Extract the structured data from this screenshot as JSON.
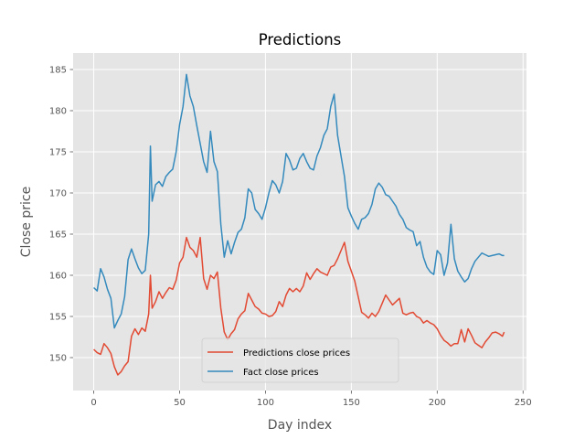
{
  "chart_data": {
    "type": "line",
    "title": "Predictions",
    "xlabel": "Day index",
    "ylabel": "Close price",
    "xlim": [
      -12,
      252
    ],
    "ylim": [
      146,
      187
    ],
    "xticks": [
      0,
      50,
      100,
      150,
      200,
      250
    ],
    "yticks": [
      150,
      155,
      160,
      165,
      170,
      175,
      180,
      185
    ],
    "grid": true,
    "legend_position": "lower-center",
    "series": [
      {
        "name": "Predictions close prices",
        "color": "#E24A33",
        "x": [
          0,
          2,
          4,
          6,
          8,
          10,
          12,
          14,
          16,
          18,
          20,
          22,
          24,
          26,
          28,
          30,
          32,
          33,
          34,
          36,
          38,
          40,
          42,
          44,
          46,
          48,
          50,
          52,
          54,
          56,
          58,
          60,
          62,
          64,
          66,
          68,
          70,
          72,
          74,
          76,
          78,
          80,
          82,
          84,
          86,
          88,
          90,
          92,
          94,
          96,
          98,
          100,
          102,
          104,
          106,
          108,
          110,
          112,
          114,
          116,
          118,
          120,
          122,
          124,
          126,
          128,
          130,
          132,
          134,
          136,
          138,
          140,
          142,
          144,
          146,
          148,
          150,
          152,
          154,
          156,
          158,
          160,
          162,
          164,
          166,
          168,
          170,
          172,
          174,
          176,
          178,
          180,
          182,
          184,
          186,
          188,
          190,
          192,
          194,
          196,
          198,
          200,
          202,
          204,
          206,
          208,
          210,
          212,
          214,
          216,
          218,
          220,
          222,
          224,
          226,
          228,
          230,
          232,
          234,
          236,
          238,
          239
        ],
        "y": [
          151.0,
          150.6,
          150.4,
          151.7,
          151.2,
          150.5,
          148.9,
          147.9,
          148.3,
          149.0,
          149.5,
          152.6,
          153.5,
          152.8,
          153.6,
          153.2,
          155.3,
          160.0,
          156.0,
          156.8,
          158.0,
          157.2,
          157.9,
          158.5,
          158.3,
          159.4,
          161.5,
          162.2,
          164.6,
          163.4,
          163.0,
          162.2,
          164.6,
          159.6,
          158.3,
          160.0,
          159.6,
          160.4,
          156.0,
          153.1,
          152.2,
          152.9,
          153.4,
          154.7,
          155.3,
          155.7,
          157.8,
          157.0,
          156.2,
          155.9,
          155.4,
          155.3,
          155.0,
          155.1,
          155.6,
          156.8,
          156.2,
          157.6,
          158.4,
          158.0,
          158.4,
          158.0,
          158.7,
          160.3,
          159.5,
          160.2,
          160.8,
          160.4,
          160.2,
          160.0,
          161.0,
          161.2,
          162.0,
          163.0,
          164.0,
          161.7,
          160.5,
          159.3,
          157.4,
          155.5,
          155.2,
          154.8,
          155.4,
          155.0,
          155.6,
          156.6,
          157.6,
          157.0,
          156.4,
          156.8,
          157.2,
          155.4,
          155.2,
          155.4,
          155.5,
          155.0,
          154.8,
          154.2,
          154.5,
          154.2,
          154.0,
          153.5,
          152.7,
          152.1,
          151.8,
          151.4,
          151.7,
          151.7,
          153.4,
          151.9,
          153.5,
          152.7,
          151.8,
          151.5,
          151.2,
          151.9,
          152.4,
          153.0,
          153.1,
          152.9,
          152.6,
          153.1
        ]
      },
      {
        "name": "Fact close prices",
        "color": "#348ABD",
        "x": [
          0,
          2,
          4,
          6,
          8,
          10,
          12,
          14,
          16,
          18,
          20,
          22,
          24,
          26,
          28,
          30,
          32,
          33,
          34,
          36,
          38,
          40,
          42,
          44,
          46,
          48,
          50,
          52,
          54,
          56,
          58,
          60,
          62,
          64,
          66,
          68,
          70,
          72,
          74,
          76,
          78,
          80,
          82,
          84,
          86,
          88,
          90,
          92,
          94,
          96,
          98,
          100,
          102,
          104,
          106,
          108,
          110,
          112,
          114,
          116,
          118,
          120,
          122,
          124,
          126,
          128,
          130,
          132,
          134,
          136,
          138,
          140,
          142,
          144,
          146,
          148,
          150,
          152,
          154,
          156,
          158,
          160,
          162,
          164,
          166,
          168,
          170,
          172,
          174,
          176,
          178,
          180,
          182,
          184,
          186,
          188,
          190,
          192,
          194,
          196,
          198,
          200,
          202,
          204,
          206,
          208,
          210,
          212,
          214,
          216,
          218,
          220,
          222,
          224,
          226,
          228,
          230,
          232,
          234,
          236,
          238,
          239
        ],
        "y": [
          158.5,
          158.1,
          160.8,
          159.8,
          158.3,
          157.2,
          153.6,
          154.5,
          155.3,
          157.4,
          161.9,
          163.2,
          162.0,
          160.9,
          160.2,
          160.6,
          165.0,
          175.7,
          169.0,
          171.0,
          171.4,
          170.8,
          172.0,
          172.5,
          172.9,
          175.0,
          178.3,
          180.5,
          184.4,
          181.8,
          180.5,
          178.2,
          176.0,
          173.8,
          172.5,
          177.5,
          173.8,
          172.6,
          166.2,
          162.2,
          164.2,
          162.6,
          164.0,
          165.2,
          165.6,
          167.0,
          170.5,
          170.0,
          168.0,
          167.5,
          166.8,
          168.2,
          170.0,
          171.5,
          171.0,
          170.0,
          171.4,
          174.8,
          174.0,
          172.8,
          173.0,
          174.2,
          174.8,
          173.8,
          173.0,
          172.8,
          174.5,
          175.5,
          177.0,
          177.8,
          180.5,
          182.0,
          177.0,
          174.5,
          172.0,
          168.2,
          167.2,
          166.3,
          165.6,
          166.8,
          167.0,
          167.5,
          168.6,
          170.5,
          171.2,
          170.7,
          169.8,
          169.6,
          169.0,
          168.4,
          167.4,
          166.8,
          165.8,
          165.5,
          165.3,
          163.6,
          164.1,
          162.2,
          161.0,
          160.4,
          160.1,
          163.0,
          162.5,
          160.0,
          161.5,
          166.2,
          162.0,
          160.5,
          159.8,
          159.2,
          159.6,
          160.8,
          161.7,
          162.2,
          162.7,
          162.5,
          162.3,
          162.4,
          162.5,
          162.6,
          162.4,
          162.4
        ]
      }
    ]
  }
}
